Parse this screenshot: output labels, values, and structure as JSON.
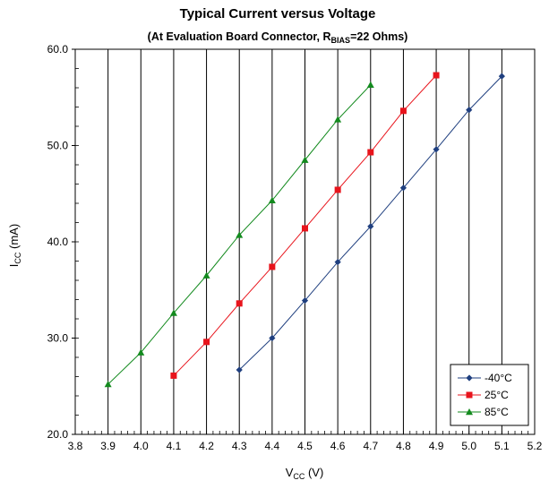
{
  "chart_data": {
    "type": "line",
    "title": "Typical Current versus Voltage",
    "subtitle": {
      "prefix": "(At Evaluation Board Connector, R",
      "subscript": "BIAS",
      "suffix": "=22 Ohms)"
    },
    "xlabel": {
      "main": "V",
      "subscript": "CC",
      "unit": " (V)"
    },
    "ylabel": {
      "main": "I",
      "subscript": "CC",
      "unit": " (mA)"
    },
    "xlim": [
      3.8,
      5.2
    ],
    "ylim": [
      20,
      60
    ],
    "x_ticks": [
      3.8,
      3.9,
      4.0,
      4.1,
      4.2,
      4.3,
      4.4,
      4.5,
      4.6,
      4.7,
      4.8,
      4.9,
      5.0,
      5.1,
      5.2
    ],
    "x_tick_labels": [
      "3.8",
      "3.9",
      "4.0",
      "4.1",
      "4.2",
      "4.3",
      "4.4",
      "4.5",
      "4.6",
      "4.7",
      "4.8",
      "4.9",
      "5.0",
      "5.1",
      "5.2"
    ],
    "y_ticks": [
      20,
      30,
      40,
      50,
      60
    ],
    "y_tick_labels": [
      "20.0",
      "30.0",
      "40.0",
      "50.0",
      "60.0"
    ],
    "grid": "vertical",
    "legend_position": "bottom-right",
    "series": [
      {
        "name": "-40°C",
        "color": "#1f3f7f",
        "marker": "diamond",
        "x": [
          4.3,
          4.4,
          4.5,
          4.6,
          4.7,
          4.8,
          4.9,
          5.0,
          5.1
        ],
        "y": [
          26.7,
          30.0,
          33.9,
          37.9,
          41.6,
          45.6,
          49.6,
          53.7,
          57.2
        ]
      },
      {
        "name": "25°C",
        "color": "#e8141c",
        "marker": "square",
        "x": [
          4.1,
          4.2,
          4.3,
          4.4,
          4.5,
          4.6,
          4.7,
          4.8,
          4.9
        ],
        "y": [
          26.1,
          29.6,
          33.6,
          37.4,
          41.4,
          45.4,
          49.3,
          53.6,
          57.3
        ]
      },
      {
        "name": "85°C",
        "color": "#138a1e",
        "marker": "triangle",
        "x": [
          3.9,
          4.0,
          4.1,
          4.2,
          4.3,
          4.4,
          4.5,
          4.6,
          4.7
        ],
        "y": [
          25.2,
          28.5,
          32.6,
          36.5,
          40.7,
          44.3,
          48.5,
          52.7,
          56.3
        ]
      }
    ]
  }
}
